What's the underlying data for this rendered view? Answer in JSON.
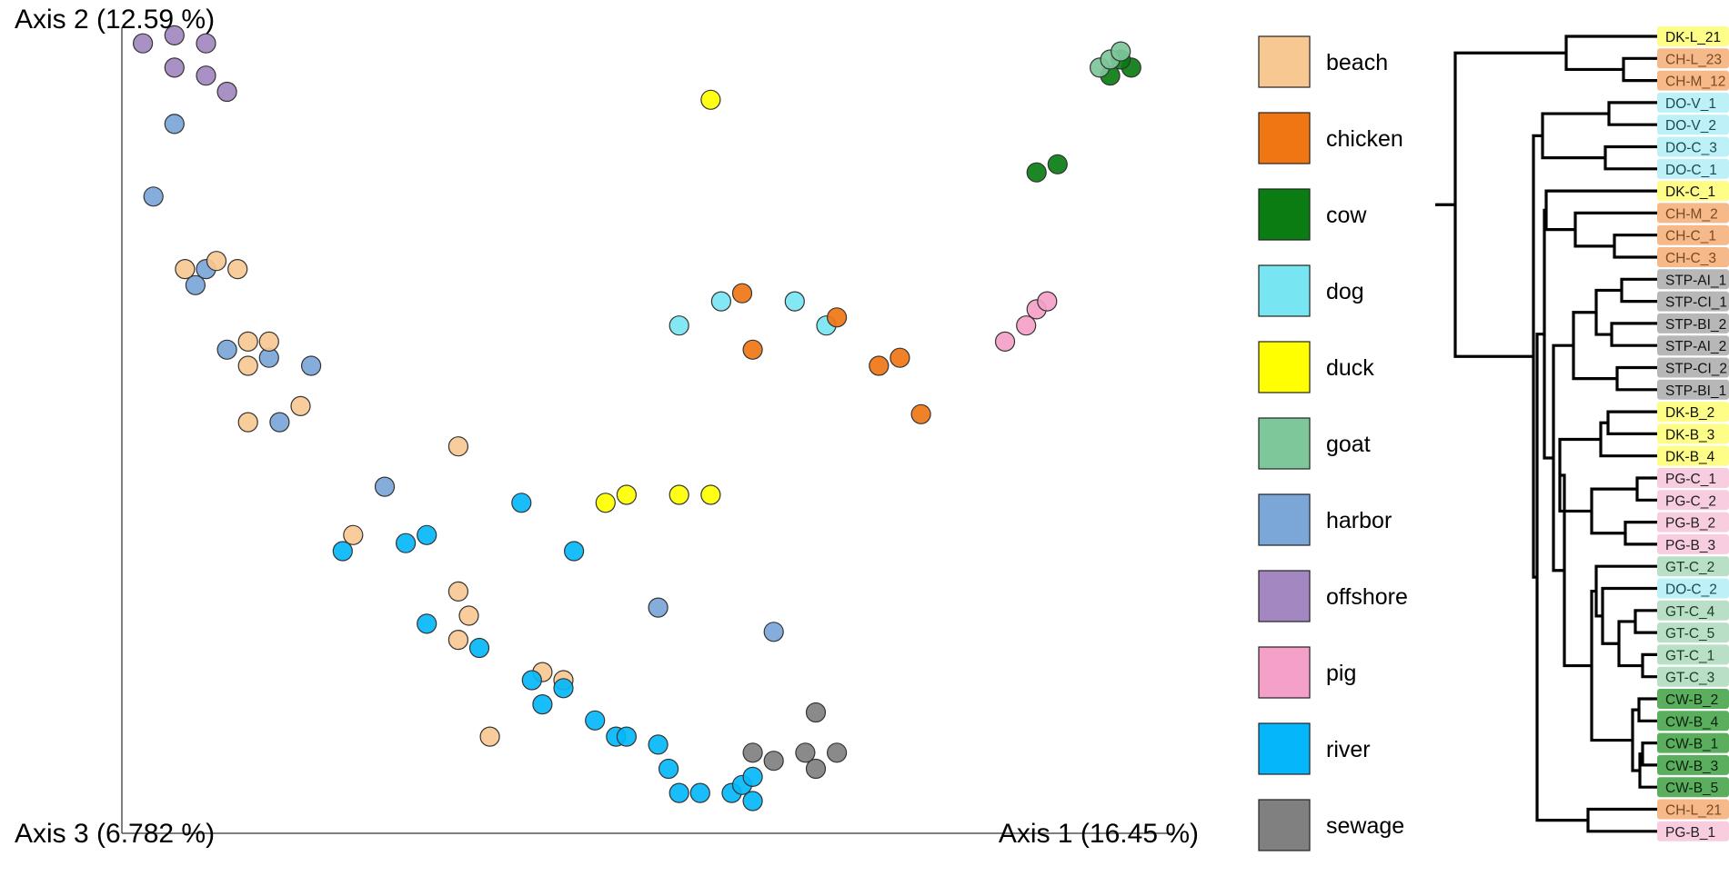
{
  "chart_data": [
    {
      "type": "scatter",
      "axes": {
        "vertical": "Axis 2 (12.59 %)",
        "depth": "Axis 3 (6.782 %)",
        "horizontal": "Axis 1 (16.45 %)"
      },
      "projection": "3d-pcoa",
      "grid": false,
      "legend_position": "right",
      "colors": {
        "beach": "#f8c892",
        "chicken": "#f07613",
        "cow": "#0a7c12",
        "dog": "#78e6f2",
        "duck": "#ffff00",
        "goat": "#7ec79a",
        "harbor": "#7aa6d8",
        "offshore": "#a287c0",
        "pig": "#f4a0c8",
        "river": "#04b7fa",
        "sewage": "#808080"
      },
      "series": [
        {
          "name": "offshore",
          "x": [
            0.02,
            0.05,
            0.08,
            0.05,
            0.1,
            0.08
          ],
          "y": [
            0.98,
            0.99,
            0.98,
            0.95,
            0.92,
            0.94
          ]
        },
        {
          "name": "harbor",
          "x": [
            0.05,
            0.03,
            0.08,
            0.07,
            0.1,
            0.14,
            0.18,
            0.15,
            0.25,
            0.62,
            0.51
          ],
          "y": [
            0.88,
            0.79,
            0.7,
            0.68,
            0.6,
            0.59,
            0.58,
            0.51,
            0.43,
            0.25,
            0.28
          ]
        },
        {
          "name": "beach",
          "x": [
            0.06,
            0.09,
            0.11,
            0.12,
            0.14,
            0.12,
            0.17,
            0.12,
            0.32,
            0.22,
            0.32,
            0.32,
            0.33,
            0.4,
            0.42,
            0.35
          ],
          "y": [
            0.7,
            0.71,
            0.7,
            0.61,
            0.61,
            0.58,
            0.53,
            0.51,
            0.48,
            0.37,
            0.3,
            0.24,
            0.27,
            0.2,
            0.19,
            0.12
          ]
        },
        {
          "name": "river",
          "x": [
            0.21,
            0.27,
            0.29,
            0.38,
            0.43,
            0.29,
            0.34,
            0.39,
            0.42,
            0.45,
            0.4,
            0.47,
            0.51,
            0.52,
            0.53,
            0.55,
            0.58,
            0.6,
            0.59,
            0.6,
            0.48
          ],
          "y": [
            0.35,
            0.36,
            0.37,
            0.41,
            0.35,
            0.26,
            0.23,
            0.19,
            0.18,
            0.14,
            0.16,
            0.12,
            0.11,
            0.08,
            0.05,
            0.05,
            0.05,
            0.04,
            0.06,
            0.07,
            0.12
          ]
        },
        {
          "name": "sewage",
          "x": [
            0.6,
            0.62,
            0.65,
            0.68,
            0.66,
            0.66
          ],
          "y": [
            0.1,
            0.09,
            0.1,
            0.1,
            0.08,
            0.15
          ]
        },
        {
          "name": "duck",
          "x": [
            0.46,
            0.48,
            0.53,
            0.56,
            0.56
          ],
          "y": [
            0.41,
            0.42,
            0.42,
            0.42,
            0.91
          ]
        },
        {
          "name": "dog",
          "x": [
            0.53,
            0.57,
            0.64,
            0.67
          ],
          "y": [
            0.63,
            0.66,
            0.66,
            0.63
          ]
        },
        {
          "name": "chicken",
          "x": [
            0.59,
            0.6,
            0.68,
            0.72,
            0.74,
            0.76
          ],
          "y": [
            0.67,
            0.6,
            0.64,
            0.58,
            0.59,
            0.52
          ]
        },
        {
          "name": "pig",
          "x": [
            0.84,
            0.86,
            0.87,
            0.88
          ],
          "y": [
            0.61,
            0.63,
            0.65,
            0.66
          ]
        },
        {
          "name": "cow",
          "x": [
            0.87,
            0.89,
            0.94,
            0.96,
            0.95
          ],
          "y": [
            0.82,
            0.83,
            0.94,
            0.95,
            0.96
          ]
        },
        {
          "name": "goat",
          "x": [
            0.93,
            0.94,
            0.95
          ],
          "y": [
            0.95,
            0.96,
            0.97
          ]
        }
      ]
    },
    {
      "type": "dendrogram",
      "leaves": [
        {
          "label": "DK-L_21",
          "group": "duck"
        },
        {
          "label": "CH-L_23",
          "group": "chicken"
        },
        {
          "label": "CH-M_12",
          "group": "chicken"
        },
        {
          "label": "DO-V_1",
          "group": "dog"
        },
        {
          "label": "DO-V_2",
          "group": "dog"
        },
        {
          "label": "DO-C_3",
          "group": "dog"
        },
        {
          "label": "DO-C_1",
          "group": "dog"
        },
        {
          "label": "DK-C_1",
          "group": "duck"
        },
        {
          "label": "CH-M_2",
          "group": "chicken"
        },
        {
          "label": "CH-C_1",
          "group": "chicken"
        },
        {
          "label": "CH-C_3",
          "group": "chicken"
        },
        {
          "label": "STP-AI_1",
          "group": "sewage"
        },
        {
          "label": "STP-CI_1",
          "group": "sewage"
        },
        {
          "label": "STP-BI_2",
          "group": "sewage"
        },
        {
          "label": "STP-AI_2",
          "group": "sewage"
        },
        {
          "label": "STP-CI_2",
          "group": "sewage"
        },
        {
          "label": "STP-BI_1",
          "group": "sewage"
        },
        {
          "label": "DK-B_2",
          "group": "duck"
        },
        {
          "label": "DK-B_3",
          "group": "duck"
        },
        {
          "label": "DK-B_4",
          "group": "duck"
        },
        {
          "label": "PG-C_1",
          "group": "pig"
        },
        {
          "label": "PG-C_2",
          "group": "pig"
        },
        {
          "label": "PG-B_2",
          "group": "pig"
        },
        {
          "label": "PG-B_3",
          "group": "pig"
        },
        {
          "label": "GT-C_2",
          "group": "goat"
        },
        {
          "label": "DO-C_2",
          "group": "dog"
        },
        {
          "label": "GT-C_4",
          "group": "goat"
        },
        {
          "label": "GT-C_5",
          "group": "goat"
        },
        {
          "label": "GT-C_1",
          "group": "goat"
        },
        {
          "label": "GT-C_3",
          "group": "goat"
        },
        {
          "label": "CW-B_2",
          "group": "cow"
        },
        {
          "label": "CW-B_4",
          "group": "cow"
        },
        {
          "label": "CW-B_1",
          "group": "cow"
        },
        {
          "label": "CW-B_3",
          "group": "cow"
        },
        {
          "label": "CW-B_5",
          "group": "cow"
        },
        {
          "label": "CH-L_21",
          "group": "chicken"
        },
        {
          "label": "PG-B_1",
          "group": "pig"
        }
      ]
    }
  ],
  "legend": [
    {
      "label": "beach",
      "color": "#f8c892"
    },
    {
      "label": "chicken",
      "color": "#f07613"
    },
    {
      "label": "cow",
      "color": "#0a7c12"
    },
    {
      "label": "dog",
      "color": "#78e6f2"
    },
    {
      "label": "duck",
      "color": "#ffff00"
    },
    {
      "label": "goat",
      "color": "#7ec79a"
    },
    {
      "label": "harbor",
      "color": "#7aa6d8"
    },
    {
      "label": "offshore",
      "color": "#a287c0"
    },
    {
      "label": "pig",
      "color": "#f4a0c8"
    },
    {
      "label": "river",
      "color": "#04b7fa"
    },
    {
      "label": "sewage",
      "color": "#808080"
    }
  ],
  "leaf_colors": {
    "duck": {
      "bg": "#fdfd88",
      "fg": "#111111"
    },
    "chicken": {
      "bg": "#f6b98a",
      "fg": "#7a4a22"
    },
    "dog": {
      "bg": "#bdf1f7",
      "fg": "#1a4a52"
    },
    "sewage": {
      "bg": "#b7b7b7",
      "fg": "#111111"
    },
    "pig": {
      "bg": "#f8cde0",
      "fg": "#222222"
    },
    "goat": {
      "bg": "#b9e0c6",
      "fg": "#1d3d26"
    },
    "cow": {
      "bg": "#5aae5e",
      "fg": "#0a220c"
    }
  }
}
